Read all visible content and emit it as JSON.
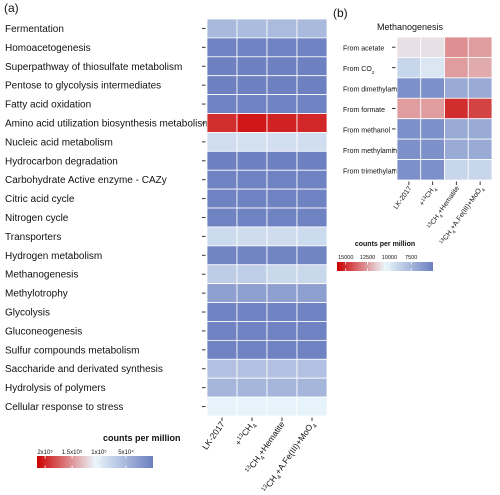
{
  "chart_data": [
    {
      "panel_label": "(a)",
      "type": "heatmap",
      "title": "",
      "rows": [
        "Fermentation",
        "Homoacetogenesis",
        "Superpathway of thiosulfate metabolism",
        "Pentose to glycolysis intermediates",
        "Fatty acid oxidation",
        "Amino acid utilization biosynthesis metabolism",
        "Nucleic acid metabolism",
        "Hydrocarbon degradation",
        "Carbohydrate Active enzyme - CAZy",
        "Citric acid cycle",
        "Nitrogen cycle",
        "Transporters",
        "Hydrogen metabolism",
        "Methanogenesis",
        "Methylotrophy",
        "Glycolysis",
        "Gluconeogenesis",
        "Sulfur compounds metabolism",
        "Saccharide and derivated synthesis",
        "Hydrolysis of polymers",
        "Cellular response to stress"
      ],
      "columns": [
        "LK-2017",
        "+13CH4",
        "13CH4+Hematite",
        "13CH4+A.Fe(III)+MoO4"
      ],
      "values": [
        [
          52000,
          55000,
          54000,
          53000
        ],
        [
          3000,
          3000,
          3000,
          3000
        ],
        [
          2000,
          2000,
          2000,
          2000
        ],
        [
          2000,
          2000,
          2000,
          2000
        ],
        [
          4000,
          4000,
          4000,
          4000
        ],
        [
          195000,
          205000,
          200000,
          198000
        ],
        [
          85000,
          88000,
          87000,
          86000
        ],
        [
          2000,
          2000,
          2000,
          2000
        ],
        [
          3000,
          3000,
          3000,
          3000
        ],
        [
          3000,
          3000,
          3000,
          3000
        ],
        [
          3000,
          3000,
          3000,
          3000
        ],
        [
          82000,
          84000,
          84000,
          83000
        ],
        [
          5000,
          5000,
          5000,
          5000
        ],
        [
          70000,
          72000,
          80000,
          80000
        ],
        [
          30000,
          30000,
          30000,
          30000
        ],
        [
          4000,
          4000,
          4000,
          4000
        ],
        [
          3000,
          3000,
          3000,
          3000
        ],
        [
          3000,
          3000,
          3000,
          3000
        ],
        [
          60000,
          60000,
          60000,
          60000
        ],
        [
          50000,
          50000,
          50000,
          50000
        ],
        [
          105000,
          105000,
          105000,
          105000
        ]
      ],
      "legend": {
        "title": "counts per million",
        "ticks": [
          "2x10⁵",
          "1.5x10⁵",
          "1x10⁵",
          "5x10⁴"
        ],
        "tick_values": [
          200000,
          150000,
          100000,
          50000
        ],
        "range": [
          215000,
          0
        ]
      },
      "colors": {
        "high": "#cc0000",
        "mid": "#eaf6fb",
        "low": "#6b7fc0"
      }
    },
    {
      "panel_label": "(b)",
      "type": "heatmap",
      "title": "Methanogenesis",
      "rows": [
        "From acetate",
        "From CO2",
        "From dimethylamine",
        "From formate",
        "From methanol",
        "From methylamine",
        "From trimethylamine"
      ],
      "columns": [
        "LK-2017",
        "+13CH4",
        "13CH4+Hematite",
        "13CH4+A.Fe(III)+MoO4"
      ],
      "values": [
        [
          11000,
          11000,
          12800,
          12500
        ],
        [
          9000,
          9800,
          12500,
          12200
        ],
        [
          5800,
          5800,
          7000,
          7000
        ],
        [
          12500,
          12500,
          15000,
          14500
        ],
        [
          5800,
          5800,
          7000,
          7000
        ],
        [
          5800,
          5800,
          7000,
          7000
        ],
        [
          5800,
          5800,
          9000,
          9000
        ]
      ],
      "legend": {
        "title": "counts per million",
        "ticks": [
          "15000",
          "12500",
          "10000",
          "7500"
        ],
        "tick_values": [
          15000,
          12500,
          10000,
          7500
        ],
        "range": [
          16000,
          5000
        ]
      },
      "colors": {
        "high": "#cc0000",
        "mid": "#eaf6fb",
        "low": "#6b7fc0"
      }
    }
  ]
}
